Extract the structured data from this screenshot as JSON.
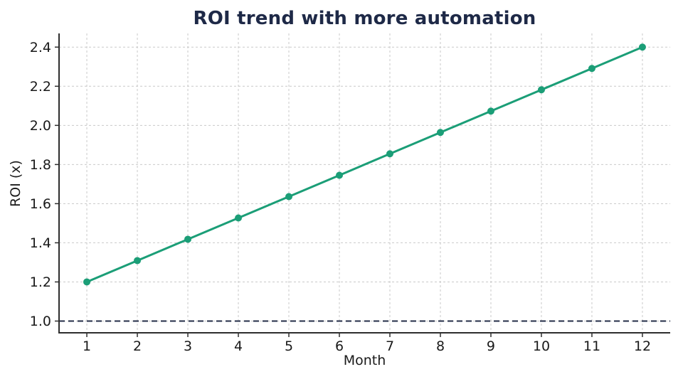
{
  "chart_data": {
    "type": "line",
    "title": "ROI trend with more automation",
    "xlabel": "Month",
    "ylabel": "ROI (x)",
    "x": [
      1,
      2,
      3,
      4,
      5,
      6,
      7,
      8,
      9,
      10,
      11,
      12
    ],
    "series": [
      {
        "name": "ROI",
        "values": [
          1.2,
          1.309,
          1.418,
          1.527,
          1.636,
          1.745,
          1.855,
          1.964,
          2.073,
          2.182,
          2.291,
          2.4
        ],
        "color": "#1b9e77",
        "marker": "circle"
      }
    ],
    "xticks": [
      1,
      2,
      3,
      4,
      5,
      6,
      7,
      8,
      9,
      10,
      11,
      12
    ],
    "xtick_labels": [
      "1",
      "2",
      "3",
      "4",
      "5",
      "6",
      "7",
      "8",
      "9",
      "10",
      "11",
      "12"
    ],
    "yticks": [
      1.0,
      1.2,
      1.4,
      1.6,
      1.8,
      2.0,
      2.2,
      2.4
    ],
    "ytick_labels": [
      "1.0",
      "1.2",
      "1.4",
      "1.6",
      "1.8",
      "2.0",
      "2.2",
      "2.4"
    ],
    "xlim": [
      0.45,
      12.55
    ],
    "ylim": [
      0.94,
      2.47
    ],
    "grid": true,
    "legend_position": "none",
    "baseline": {
      "value": 1.0,
      "style": "dashed",
      "color": "#232c47"
    },
    "colors": {
      "line": "#1b9e77",
      "title": "#1e2947",
      "grid": "#c9c9c9",
      "spine": "#2e2e2e",
      "tick_text": "#1a1a1a",
      "background": "#ffffff"
    }
  }
}
